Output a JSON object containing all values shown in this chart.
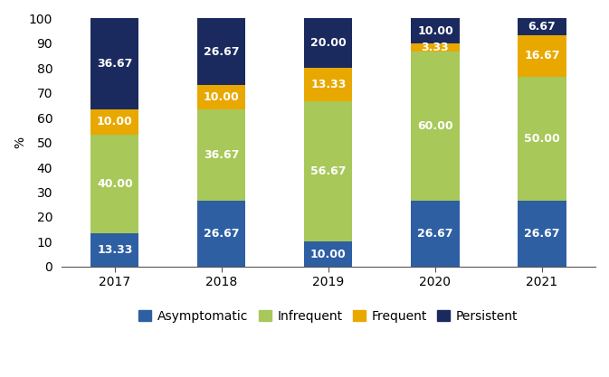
{
  "years": [
    "2017",
    "2018",
    "2019",
    "2020",
    "2021"
  ],
  "categories": [
    "Asymptomatic",
    "Infrequent",
    "Frequent",
    "Persistent"
  ],
  "colors": [
    "#2e5fa3",
    "#a8c85a",
    "#e8a800",
    "#1b2a5e"
  ],
  "values": {
    "Asymptomatic": [
      13.33,
      26.67,
      10.0,
      26.67,
      26.67
    ],
    "Infrequent": [
      40.0,
      36.67,
      56.67,
      60.0,
      50.0
    ],
    "Frequent": [
      10.0,
      10.0,
      13.33,
      3.33,
      16.67
    ],
    "Persistent": [
      36.67,
      26.67,
      20.0,
      10.0,
      6.67
    ]
  },
  "ylabel": "%",
  "ylim": [
    0,
    100
  ],
  "yticks": [
    0,
    10,
    20,
    30,
    40,
    50,
    60,
    70,
    80,
    90,
    100
  ],
  "label_color": "#ffffff",
  "label_fontsize": 9,
  "tick_fontsize": 10,
  "legend_fontsize": 10,
  "bar_width": 0.45,
  "background_color": "#ffffff"
}
